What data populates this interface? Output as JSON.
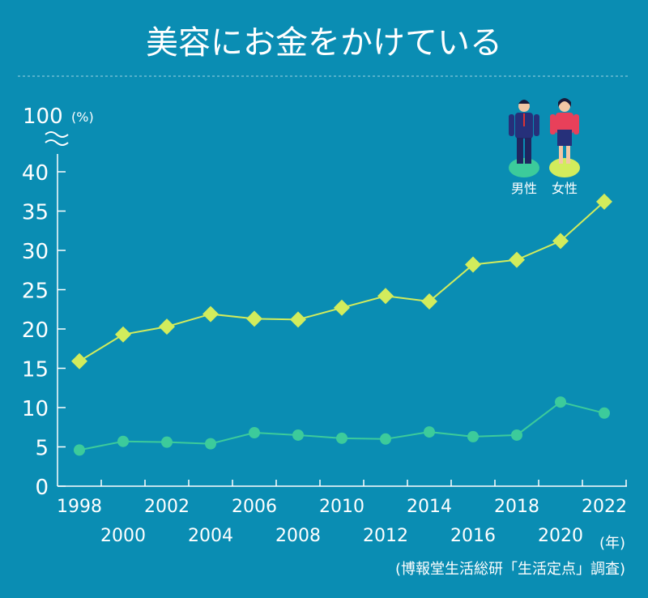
{
  "chart_data": {
    "type": "line",
    "title": "美容にお金をかけている",
    "xlabel": "(年)",
    "ylabel": "(%)",
    "ylim": [
      0,
      40
    ],
    "y_break_label": "100",
    "y_ticks": [
      "0",
      "5",
      "10",
      "15",
      "20",
      "25",
      "30",
      "35",
      "40"
    ],
    "x": [
      "1998",
      "2000",
      "2002",
      "2004",
      "2006",
      "2008",
      "2010",
      "2012",
      "2014",
      "2016",
      "2018",
      "2020",
      "2022"
    ],
    "series": [
      {
        "name": "女性",
        "marker": "diamond",
        "color": "#d2ec5c",
        "values": [
          15.9,
          19.3,
          20.3,
          21.9,
          21.3,
          21.2,
          22.7,
          24.2,
          23.5,
          28.2,
          28.8,
          31.2,
          36.2
        ]
      },
      {
        "name": "男性",
        "marker": "circle",
        "color": "#3ccb9b",
        "values": [
          4.6,
          5.7,
          5.6,
          5.4,
          6.8,
          6.5,
          6.1,
          6.0,
          6.9,
          6.3,
          6.5,
          10.7,
          9.3
        ]
      }
    ],
    "legend_position": "top-right",
    "grid": false,
    "source": "(博報堂生活総研「生活定点」調査)"
  }
}
